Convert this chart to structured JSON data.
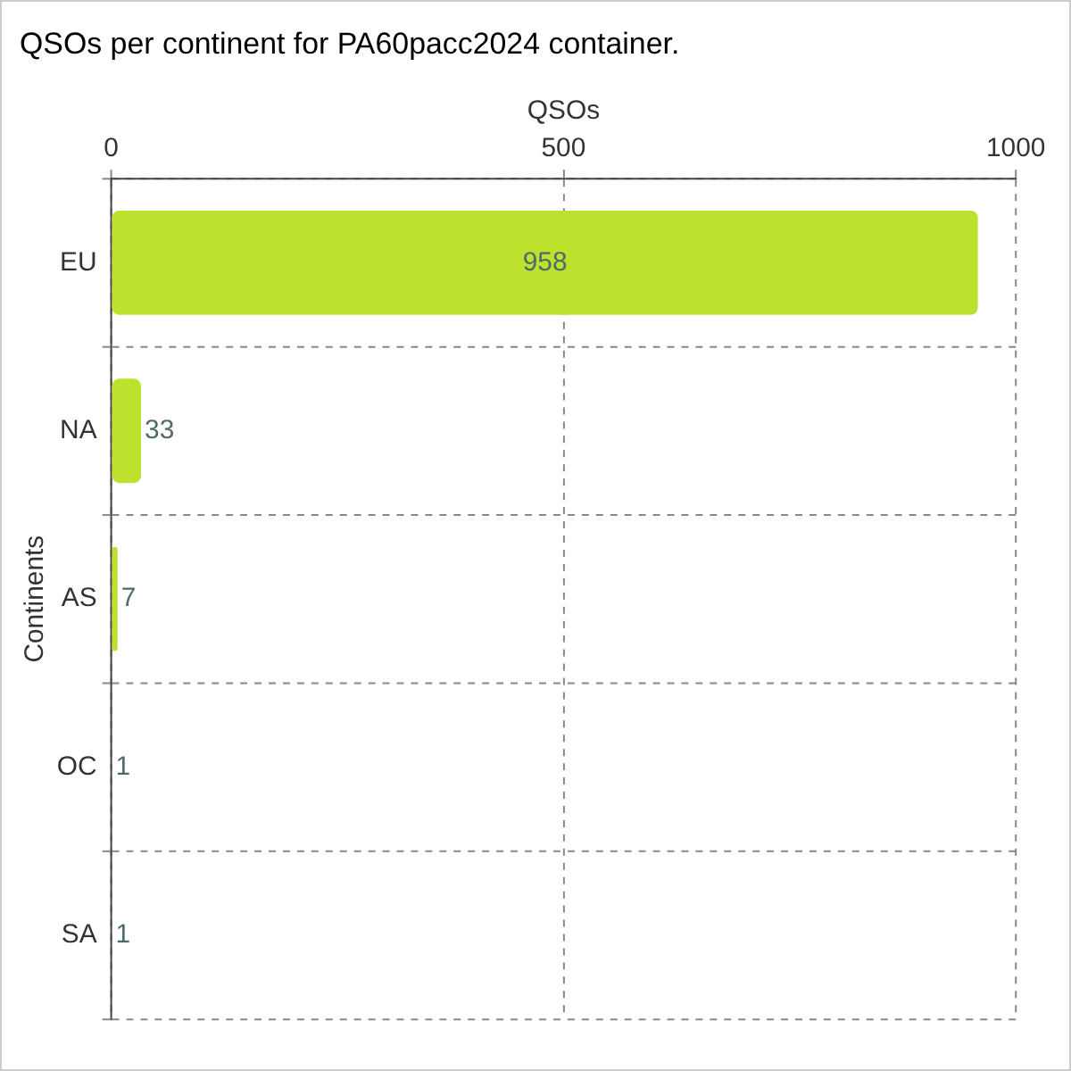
{
  "chart_data": {
    "type": "bar",
    "orientation": "horizontal",
    "title": "QSOs per continent for PA60pacc2024 container.",
    "xlabel": "QSOs",
    "ylabel": "Continents",
    "categories": [
      "EU",
      "NA",
      "AS",
      "OC",
      "SA"
    ],
    "values": [
      958,
      33,
      7,
      1,
      1
    ],
    "color": "#bde22e",
    "xlim": [
      0,
      1000
    ],
    "xticks": [
      0,
      500,
      1000
    ],
    "grid": true,
    "data_labels": true
  }
}
